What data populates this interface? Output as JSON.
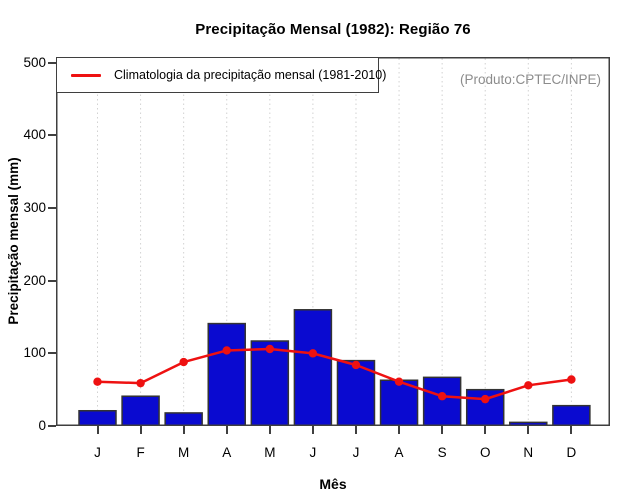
{
  "title": "Precipitação Mensal (1982): Região 76",
  "watermark": "(Produto:CPTEC/INPE)",
  "legend": {
    "label": "Climatologia da precipitação mensal (1981-2010)"
  },
  "axes": {
    "x_label": "Mês",
    "y_label": "Precipitação mensal (mm)",
    "y_ticks": [
      0,
      100,
      200,
      300,
      400,
      500
    ],
    "x_ticks": [
      "J",
      "F",
      "M",
      "A",
      "M",
      "J",
      "J",
      "A",
      "S",
      "O",
      "N",
      "D"
    ]
  },
  "colors": {
    "bar_fill": "#0a0ad0",
    "bar_border": "#333333",
    "line": "#ee1111",
    "grid": "#d2d2d2",
    "axis": "#3f3f3f",
    "watermark": "#8c8c8c",
    "text": "#000000",
    "background": "#ffffff"
  },
  "chart_data": {
    "type": "bar",
    "title": "Precipitação Mensal (1982): Região 76",
    "categories": [
      "J",
      "F",
      "M",
      "A",
      "M",
      "J",
      "J",
      "A",
      "S",
      "O",
      "N",
      "D"
    ],
    "series": [
      {
        "name": "Precipitação mensal 1982",
        "type": "bar",
        "values": [
          21,
          41,
          18,
          141,
          117,
          160,
          90,
          63,
          67,
          50,
          5,
          28
        ]
      },
      {
        "name": "Climatologia da precipitação mensal (1981-2010)",
        "type": "line",
        "values": [
          61,
          59,
          88,
          104,
          106,
          100,
          84,
          61,
          41,
          37,
          56,
          64
        ]
      }
    ],
    "xlabel": "Mês",
    "ylabel": "Precipitação mensal (mm)",
    "ylim": [
      0,
      508
    ],
    "grid": "vertical-dotted",
    "legend_position": "top-left"
  }
}
